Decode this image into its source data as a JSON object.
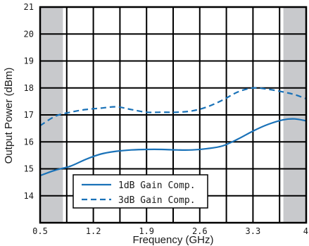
{
  "chart_data": {
    "type": "line",
    "xlabel": "Frequency (GHz)",
    "ylabel": "Output Power (dBm)",
    "xlim": [
      0.5,
      4.0
    ],
    "ylim": [
      13,
      21
    ],
    "x_ticks": [
      "0.5",
      "1.2",
      "1.9",
      "2.6",
      "3.3",
      "4"
    ],
    "y_ticks": [
      "14",
      "15",
      "16",
      "17",
      "18",
      "19",
      "20",
      "21"
    ],
    "grid": "on",
    "legend_position": "bottom-left",
    "shaded_x_ranges": [
      [
        0.5,
        0.8
      ],
      [
        3.7,
        4.0
      ]
    ],
    "shade_color": "#c8c9cc",
    "line_color": "#1a72b8",
    "series": [
      {
        "name": "1dB Gain Comp.",
        "style": "solid",
        "x": [
          0.5,
          0.7,
          0.9,
          1.1,
          1.3,
          1.5,
          1.7,
          1.9,
          2.1,
          2.3,
          2.5,
          2.7,
          2.9,
          3.1,
          3.3,
          3.5,
          3.7,
          3.85,
          4.0
        ],
        "y": [
          14.75,
          14.95,
          15.1,
          15.35,
          15.55,
          15.65,
          15.7,
          15.72,
          15.72,
          15.7,
          15.7,
          15.75,
          15.85,
          16.1,
          16.4,
          16.65,
          16.82,
          16.85,
          16.78
        ]
      },
      {
        "name": "3dB Gain Comp.",
        "style": "dashed",
        "x": [
          0.5,
          0.7,
          0.9,
          1.1,
          1.3,
          1.5,
          1.7,
          1.9,
          2.1,
          2.3,
          2.5,
          2.7,
          2.9,
          3.1,
          3.3,
          3.5,
          3.7,
          3.85,
          4.0
        ],
        "y": [
          16.6,
          16.95,
          17.1,
          17.2,
          17.25,
          17.3,
          17.2,
          17.1,
          17.1,
          17.1,
          17.15,
          17.3,
          17.55,
          17.85,
          18.0,
          17.95,
          17.85,
          17.75,
          17.6
        ]
      }
    ]
  }
}
